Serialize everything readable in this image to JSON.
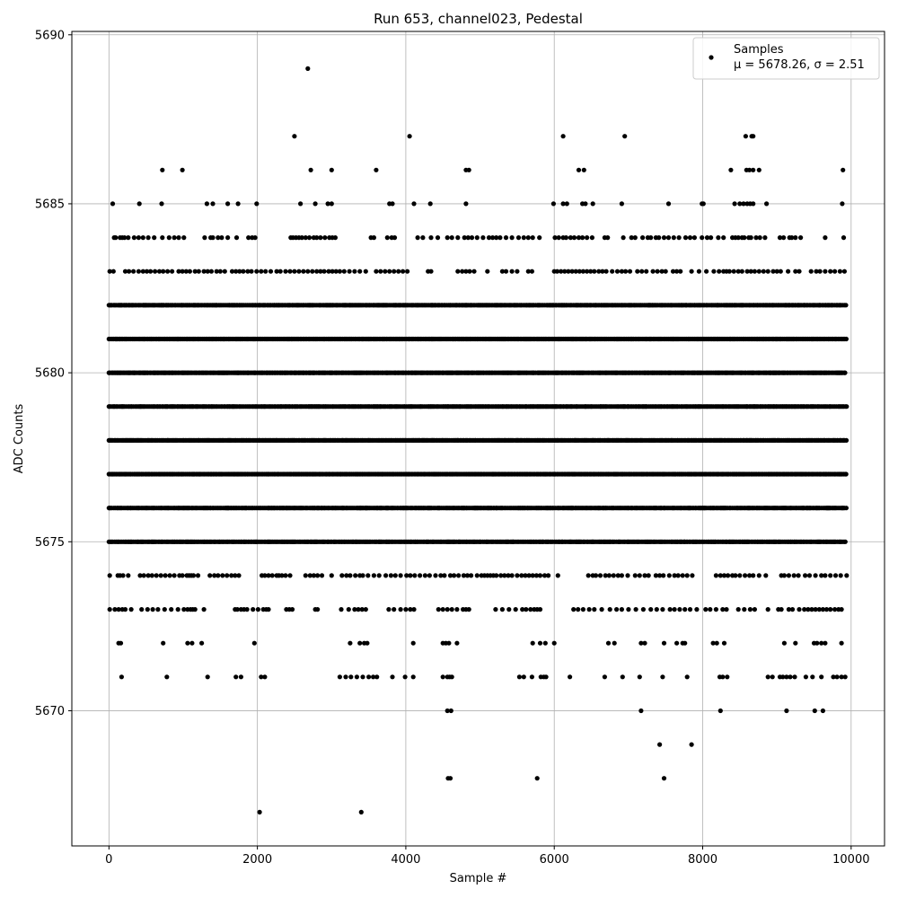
{
  "chart_data": {
    "type": "scatter",
    "title": "Run 653, channel023, Pedestal",
    "xlabel": "Sample #",
    "ylabel": "ADC Counts",
    "xlim": [
      -500,
      10450
    ],
    "ylim": [
      5666,
      5690.1
    ],
    "xticks": [
      0,
      2000,
      4000,
      6000,
      8000,
      10000
    ],
    "yticks": [
      5670,
      5675,
      5680,
      5685,
      5690
    ],
    "grid": true,
    "legend_position": "top-right",
    "series": [
      {
        "name": "Samples",
        "color": "#000000",
        "marker": "circle",
        "stats_label": "μ = 5678.26, σ = 2.51",
        "n_samples": 10000,
        "dense_rows_x_range": [
          0,
          9940
        ],
        "dense_rows": [
          {
            "y": 5675
          },
          {
            "y": 5676
          },
          {
            "y": 5677
          },
          {
            "y": 5678
          },
          {
            "y": 5679
          },
          {
            "y": 5680
          },
          {
            "y": 5681
          },
          {
            "y": 5682
          }
        ],
        "sparse_rows": [
          {
            "y": 5683,
            "x": [
              10,
              60,
              220,
              270,
              330,
              400,
              460,
              510,
              560,
              620,
              680,
              730,
              790,
              850,
              940,
              990,
              1040,
              1090,
              1160,
              1210,
              1280,
              1330,
              1380,
              1450,
              1500,
              1560,
              1660,
              1710,
              1760,
              1810,
              1870,
              1920,
              1990,
              2050,
              2110,
              2180,
              2260,
              2310,
              2380,
              2440,
              2500,
              2560,
              2620,
              2680,
              2740,
              2800,
              2850,
              2900,
              2960,
              3010,
              3060,
              3110,
              3170,
              3240,
              3310,
              3380,
              3460,
              3600,
              3660,
              3720,
              3780,
              3840,
              3900,
              3960,
              4020,
              4300,
              4340,
              4700,
              4760,
              4810,
              4860,
              4920,
              5100,
              5300,
              5350,
              5430,
              5500,
              5650,
              5700,
              6000,
              6040,
              6090,
              6140,
              6190,
              6240,
              6290,
              6340,
              6390,
              6440,
              6490,
              6540,
              6600,
              6650,
              6700,
              6780,
              6850,
              6910,
              6960,
              7020,
              7120,
              7180,
              7240,
              7330,
              7390,
              7450,
              7500,
              7600,
              7650,
              7700,
              7850,
              7950,
              8050,
              8150,
              8220,
              8280,
              8320,
              8360,
              8420,
              8480,
              8530,
              8600,
              8650,
              8700,
              8760,
              8820,
              8880,
              8950,
              9000,
              9050,
              9150,
              9250,
              9300,
              9460,
              9530,
              9580,
              9650,
              9720,
              9780,
              9850,
              9910
            ]
          },
          {
            "y": 5684,
            "x": [
              70,
              90,
              150,
              180,
              210,
              260,
              340,
              400,
              460,
              530,
              610,
              720,
              810,
              880,
              940,
              1010,
              1290,
              1370,
              1400,
              1470,
              1520,
              1600,
              1720,
              1880,
              1930,
              1970,
              2450,
              2480,
              2520,
              2560,
              2600,
              2650,
              2700,
              2760,
              2800,
              2850,
              2910,
              2970,
              3010,
              3050,
              3530,
              3570,
              3750,
              3810,
              3850,
              4160,
              4230,
              4340,
              4430,
              4560,
              4620,
              4700,
              4790,
              4840,
              4890,
              4960,
              5040,
              5120,
              5170,
              5220,
              5270,
              5350,
              5430,
              5520,
              5590,
              5650,
              5710,
              5800,
              6010,
              6060,
              6120,
              6160,
              6220,
              6270,
              6330,
              6380,
              6440,
              6510,
              6680,
              6720,
              6930,
              7040,
              7090,
              7190,
              7260,
              7300,
              7370,
              7410,
              7480,
              7540,
              7610,
              7680,
              7770,
              7830,
              7890,
              7990,
              8060,
              8110,
              8210,
              8280,
              8400,
              8440,
              8480,
              8530,
              8560,
              8620,
              8650,
              8720,
              8770,
              8840,
              9040,
              9090,
              9170,
              9200,
              9250,
              9320,
              9650,
              9900
            ]
          },
          {
            "y": 5685,
            "x": [
              50,
              410,
              710,
              1320,
              1400,
              1600,
              1740,
              1990,
              2580,
              2780,
              2950,
              3000,
              3780,
              3820,
              4110,
              4330,
              4810,
              5990,
              6120,
              6170,
              6380,
              6420,
              6520,
              6910,
              7540,
              7990,
              8010,
              8430,
              8500,
              8550,
              8600,
              8640,
              8680,
              8860,
              9880
            ]
          },
          {
            "y": 5686,
            "x": [
              720,
              990,
              2720,
              3000,
              3600,
              4810,
              4850,
              6330,
              6400,
              8380,
              8590,
              8630,
              8680,
              8760,
              9890
            ]
          },
          {
            "y": 5687,
            "x": [
              2500,
              4050,
              6120,
              6950,
              8580,
              8660,
              8680
            ]
          },
          {
            "y": 5689,
            "x": [
              2680
            ]
          },
          {
            "y": 5674,
            "x": [
              10,
              120,
              150,
              190,
              260,
              420,
              470,
              530,
              580,
              640,
              700,
              760,
              820,
              880,
              950,
              990,
              1050,
              1080,
              1110,
              1140,
              1200,
              1360,
              1420,
              1470,
              1530,
              1590,
              1650,
              1700,
              1750,
              2060,
              2100,
              2150,
              2200,
              2260,
              2290,
              2330,
              2380,
              2440,
              2650,
              2710,
              2760,
              2810,
              2870,
              3000,
              3140,
              3200,
              3250,
              3320,
              3380,
              3420,
              3490,
              3570,
              3640,
              3730,
              3800,
              3860,
              3930,
              4010,
              4060,
              4120,
              4190,
              4260,
              4320,
              4400,
              4470,
              4520,
              4600,
              4650,
              4710,
              4780,
              4830,
              4880,
              4960,
              5020,
              5060,
              5100,
              5140,
              5180,
              5220,
              5280,
              5330,
              5380,
              5430,
              5500,
              5560,
              5610,
              5660,
              5710,
              5760,
              5810,
              5870,
              5920,
              6050,
              6460,
              6520,
              6560,
              6620,
              6690,
              6740,
              6800,
              6860,
              6910,
              6990,
              7090,
              7150,
              7220,
              7270,
              7370,
              7420,
              7470,
              7550,
              7620,
              7670,
              7730,
              7790,
              7860,
              8180,
              8240,
              8290,
              8340,
              8400,
              8440,
              8500,
              8570,
              8630,
              8680,
              8760,
              8850,
              9060,
              9100,
              9160,
              9230,
              9290,
              9380,
              9440,
              9520,
              9600,
              9650,
              9720,
              9790,
              9860,
              9940
            ]
          },
          {
            "y": 5673,
            "x": [
              10,
              80,
              130,
              180,
              220,
              300,
              440,
              520,
              590,
              660,
              750,
              840,
              930,
              1010,
              1060,
              1100,
              1130,
              1160,
              1280,
              1700,
              1730,
              1780,
              1820,
              1860,
              1940,
              2010,
              2080,
              2120,
              2150,
              2390,
              2430,
              2470,
              2780,
              2810,
              3130,
              3230,
              3310,
              3360,
              3410,
              3460,
              3770,
              3840,
              3930,
              4000,
              4060,
              4110,
              4440,
              4500,
              4560,
              4620,
              4690,
              4770,
              4810,
              4850,
              5210,
              5300,
              5390,
              5480,
              5570,
              5620,
              5680,
              5730,
              5770,
              5810,
              6260,
              6320,
              6390,
              6470,
              6540,
              6640,
              6750,
              6840,
              6910,
              7000,
              7100,
              7200,
              7300,
              7380,
              7460,
              7560,
              7620,
              7690,
              7760,
              7830,
              7920,
              8040,
              8100,
              8180,
              8270,
              8320,
              8480,
              8560,
              8640,
              8700,
              8880,
              9020,
              9060,
              9160,
              9210,
              9300,
              9370,
              9420,
              9470,
              9520,
              9570,
              9620,
              9670,
              9720,
              9780,
              9830,
              9870
            ]
          },
          {
            "y": 5672,
            "x": [
              130,
              160,
              730,
              1060,
              1120,
              1250,
              1960,
              3250,
              3380,
              3440,
              3480,
              4100,
              4500,
              4540,
              4580,
              4690,
              5710,
              5810,
              5880,
              6000,
              6730,
              6810,
              7170,
              7220,
              7480,
              7650,
              7730,
              7760,
              8140,
              8190,
              8290,
              9100,
              9250,
              9500,
              9540,
              9600,
              9650,
              9870
            ]
          },
          {
            "y": 5671,
            "x": [
              170,
              780,
              1330,
              1710,
              1780,
              2050,
              2100,
              3110,
              3190,
              3260,
              3340,
              3420,
              3500,
              3560,
              3610,
              3820,
              3990,
              4100,
              4500,
              4560,
              4590,
              4620,
              5530,
              5590,
              5700,
              5820,
              5860,
              5890,
              6210,
              6680,
              6920,
              7150,
              7460,
              7790,
              8230,
              8270,
              8330,
              8880,
              8940,
              9040,
              9080,
              9130,
              9180,
              9240,
              9390,
              9480,
              9600,
              9760,
              9810,
              9870,
              9920
            ]
          },
          {
            "y": 5670,
            "x": [
              4560,
              4610,
              7170,
              8240,
              9130,
              9510,
              9620
            ]
          },
          {
            "y": 5669,
            "x": [
              7420,
              7850
            ]
          },
          {
            "y": 5668,
            "x": [
              4570,
              4600,
              5770,
              7480
            ]
          },
          {
            "y": 5667,
            "x": [
              2030,
              3400
            ]
          }
        ]
      }
    ]
  }
}
